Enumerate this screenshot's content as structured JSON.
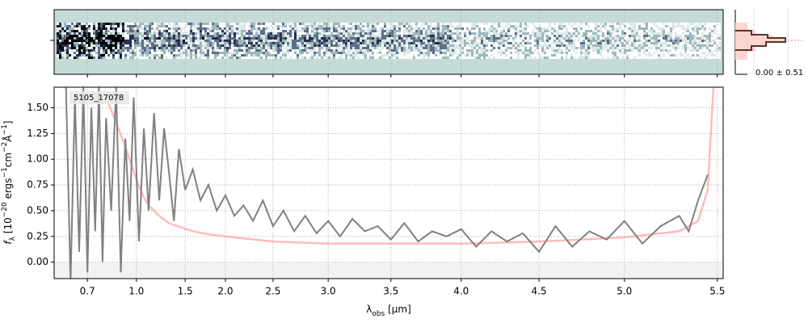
{
  "chart_data": {
    "type": "line",
    "object_label": "5105_17078",
    "profile_label": "0.00 ± 0.51",
    "xlabel_parts": [
      "λ",
      "obs",
      " [μm]"
    ],
    "ylabel_parts": [
      "f",
      "λ",
      " [10",
      "−20",
      " ergs",
      "−1",
      "cm",
      "−2",
      "Å",
      "−1",
      "]"
    ],
    "xscale": "prism",
    "xlim": [
      0.55,
      5.53
    ],
    "xticks": [
      0.7,
      {
        "value": 1,
        "label": "1.0"
      },
      1.5,
      {
        "value": 2,
        "label": "2.0"
      },
      2.5,
      {
        "value": 3,
        "label": "3.0"
      },
      3.5,
      {
        "value": 4,
        "label": "4.0"
      },
      4.5,
      {
        "value": 5,
        "label": "5.0"
      },
      5.5
    ],
    "ylim": [
      -0.16,
      1.7
    ],
    "yticks": [
      {
        "value": 0,
        "label": "0.00"
      },
      {
        "value": 0.25,
        "label": "0.25"
      },
      {
        "value": 0.5,
        "label": "0.50"
      },
      {
        "value": 0.75,
        "label": "0.75"
      },
      {
        "value": 1,
        "label": "1.00"
      },
      {
        "value": 1.25,
        "label": "1.25"
      },
      {
        "value": 1.5,
        "label": "1.50"
      }
    ],
    "grid": true,
    "series": [
      {
        "color": "#ff9e9e",
        "x": [
          0.8,
          0.85,
          0.9,
          0.95,
          1.0,
          1.05,
          1.1,
          1.2,
          1.3,
          1.4,
          1.6,
          1.8,
          2.0,
          2.5,
          3.0,
          3.5,
          4.0,
          4.5,
          5.0,
          5.3,
          5.4,
          5.45,
          5.48
        ],
        "values": [
          1.6,
          1.4,
          1.2,
          1.0,
          0.8,
          0.65,
          0.55,
          0.45,
          0.38,
          0.35,
          0.3,
          0.27,
          0.25,
          0.2,
          0.18,
          0.18,
          0.18,
          0.2,
          0.24,
          0.3,
          0.4,
          0.7,
          1.7
        ]
      },
      {
        "color": "#808080",
        "x": [
          0.6,
          0.62,
          0.64,
          0.66,
          0.68,
          0.7,
          0.72,
          0.74,
          0.76,
          0.78,
          0.8,
          0.83,
          0.86,
          0.89,
          0.92,
          0.95,
          0.98,
          1.02,
          1.06,
          1.1,
          1.15,
          1.2,
          1.25,
          1.3,
          1.36,
          1.42,
          1.5,
          1.6,
          1.7,
          1.8,
          1.9,
          2.0,
          2.1,
          2.2,
          2.3,
          2.4,
          2.5,
          2.6,
          2.7,
          2.8,
          2.9,
          3.0,
          3.1,
          3.2,
          3.3,
          3.4,
          3.5,
          3.6,
          3.7,
          3.8,
          3.9,
          4.0,
          4.1,
          4.2,
          4.3,
          4.4,
          4.5,
          4.6,
          4.7,
          4.8,
          4.9,
          5.0,
          5.1,
          5.2,
          5.3,
          5.35,
          5.4,
          5.45
        ],
        "values": [
          1.7,
          -0.2,
          1.6,
          0.1,
          1.7,
          -0.1,
          1.5,
          0.3,
          1.7,
          0.0,
          1.4,
          0.5,
          1.7,
          -0.1,
          1.2,
          0.4,
          1.6,
          0.2,
          1.3,
          0.5,
          1.45,
          0.6,
          1.3,
          0.9,
          0.4,
          1.1,
          0.7,
          0.9,
          0.6,
          0.75,
          0.5,
          0.65,
          0.45,
          0.55,
          0.4,
          0.6,
          0.35,
          0.5,
          0.3,
          0.45,
          0.28,
          0.4,
          0.25,
          0.42,
          0.3,
          0.35,
          0.22,
          0.38,
          0.2,
          0.3,
          0.25,
          0.32,
          0.15,
          0.3,
          0.2,
          0.28,
          0.1,
          0.35,
          0.15,
          0.3,
          0.22,
          0.4,
          0.18,
          0.35,
          0.45,
          0.3,
          0.6,
          0.85
        ]
      }
    ]
  }
}
